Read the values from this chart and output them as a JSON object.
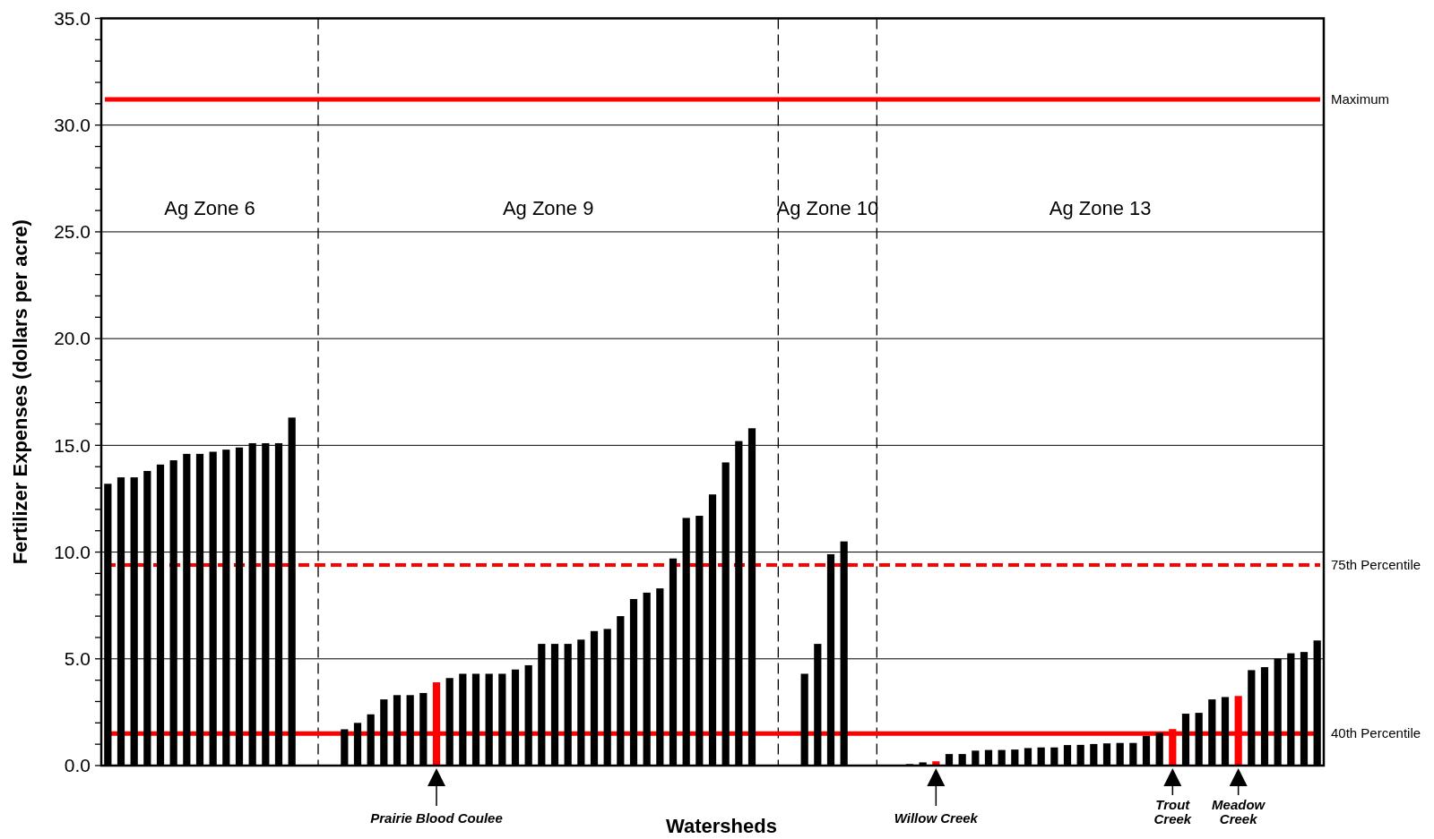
{
  "chart_data": {
    "type": "bar",
    "xlabel": "Watersheds",
    "ylabel": "Fertilizer Expenses (dollars per acre)",
    "categories": [
      null,
      null,
      null,
      null,
      null,
      null,
      null,
      null,
      null,
      null,
      null,
      null,
      null,
      null,
      null,
      null,
      null,
      null,
      null,
      null,
      null,
      null,
      null,
      null,
      null,
      "Prairie Blood Coulee",
      null,
      null,
      null,
      null,
      null,
      null,
      null,
      null,
      null,
      null,
      null,
      null,
      null,
      null,
      null,
      null,
      null,
      null,
      null,
      null,
      null,
      null,
      null,
      null,
      null,
      null,
      null,
      null,
      null,
      null,
      null,
      null,
      null,
      null,
      null,
      null,
      null,
      "Willow Creek",
      null,
      null,
      null,
      null,
      null,
      null,
      null,
      null,
      null,
      null,
      null,
      null,
      null,
      null,
      null,
      null,
      null,
      "Trout Creek",
      null,
      null,
      null,
      null,
      "Meadow Creek",
      null,
      null,
      null,
      null,
      null,
      null
    ],
    "values": [
      13.2,
      13.5,
      13.5,
      13.8,
      14.1,
      14.3,
      14.6,
      14.6,
      14.7,
      14.8,
      14.9,
      15.1,
      15.1,
      15.1,
      16.3,
      null,
      null,
      null,
      1.7,
      2.0,
      2.4,
      3.1,
      3.3,
      3.3,
      3.4,
      3.9,
      4.1,
      4.3,
      4.3,
      4.3,
      4.3,
      4.5,
      4.7,
      5.7,
      5.7,
      5.7,
      5.9,
      6.3,
      6.4,
      7.0,
      7.8,
      8.1,
      8.3,
      9.7,
      11.6,
      11.7,
      12.7,
      14.2,
      15.2,
      15.8,
      null,
      null,
      null,
      4.3,
      5.7,
      9.9,
      10.5,
      null,
      null,
      null,
      null,
      0.07,
      0.15,
      0.2,
      0.54,
      0.54,
      0.7,
      0.73,
      0.73,
      0.75,
      0.82,
      0.85,
      0.85,
      0.96,
      0.97,
      1.01,
      1.04,
      1.06,
      1.06,
      1.39,
      1.53,
      1.71,
      2.43,
      2.47,
      3.1,
      3.21,
      3.26,
      4.47,
      4.61,
      5.01,
      5.26,
      5.32,
      5.86
    ],
    "colors": [
      "#000000",
      "#000000",
      "#000000",
      "#000000",
      "#000000",
      "#000000",
      "#000000",
      "#000000",
      "#000000",
      "#000000",
      "#000000",
      "#000000",
      "#000000",
      "#000000",
      "#000000",
      null,
      null,
      null,
      "#000000",
      "#000000",
      "#000000",
      "#000000",
      "#000000",
      "#000000",
      "#000000",
      "#ff0000",
      "#000000",
      "#000000",
      "#000000",
      "#000000",
      "#000000",
      "#000000",
      "#000000",
      "#000000",
      "#000000",
      "#000000",
      "#000000",
      "#000000",
      "#000000",
      "#000000",
      "#000000",
      "#000000",
      "#000000",
      "#000000",
      "#000000",
      "#000000",
      "#000000",
      "#000000",
      "#000000",
      "#000000",
      null,
      null,
      null,
      "#000000",
      "#000000",
      "#000000",
      "#000000",
      null,
      null,
      null,
      null,
      "#000000",
      "#000000",
      "#ff0000",
      "#000000",
      "#000000",
      "#000000",
      "#000000",
      "#000000",
      "#000000",
      "#000000",
      "#000000",
      "#000000",
      "#000000",
      "#000000",
      "#000000",
      "#000000",
      "#000000",
      "#000000",
      "#000000",
      "#000000",
      "#ff0000",
      "#000000",
      "#000000",
      "#000000",
      "#000000",
      "#ff0000",
      "#000000",
      "#000000",
      "#000000",
      "#000000",
      "#000000",
      "#000000"
    ],
    "ylim": [
      0,
      35
    ],
    "yticks": [
      {
        "value": 0,
        "label": "0.0"
      },
      {
        "value": 1,
        "label": null
      },
      {
        "value": 2,
        "label": null
      },
      {
        "value": 3,
        "label": null
      },
      {
        "value": 4,
        "label": null
      },
      {
        "value": 5,
        "label": "5.0"
      },
      {
        "value": 6,
        "label": null
      },
      {
        "value": 7,
        "label": null
      },
      {
        "value": 8,
        "label": null
      },
      {
        "value": 9,
        "label": null
      },
      {
        "value": 10,
        "label": "10.0"
      },
      {
        "value": 11,
        "label": null
      },
      {
        "value": 12,
        "label": null
      },
      {
        "value": 13,
        "label": null
      },
      {
        "value": 14,
        "label": null
      },
      {
        "value": 15,
        "label": "15.0"
      },
      {
        "value": 16,
        "label": null
      },
      {
        "value": 17,
        "label": null
      },
      {
        "value": 18,
        "label": null
      },
      {
        "value": 19,
        "label": null
      },
      {
        "value": 20,
        "label": "20.0"
      },
      {
        "value": 21,
        "label": null
      },
      {
        "value": 22,
        "label": null
      },
      {
        "value": 23,
        "label": null
      },
      {
        "value": 24,
        "label": null
      },
      {
        "value": 25,
        "label": "25.0"
      },
      {
        "value": 26,
        "label": null
      },
      {
        "value": 27,
        "label": null
      },
      {
        "value": 28,
        "label": null
      },
      {
        "value": 29,
        "label": null
      },
      {
        "value": 30,
        "label": "30.0"
      },
      {
        "value": 31,
        "label": null
      },
      {
        "value": 32,
        "label": null
      },
      {
        "value": 33,
        "label": null
      },
      {
        "value": 34,
        "label": null
      },
      {
        "value": 35,
        "label": "35.0"
      }
    ],
    "grid": "y",
    "ref_lines": [
      {
        "axis": "y",
        "value": 31.2,
        "label": "Maximum",
        "color": "#ff0000",
        "line_style": "solid"
      },
      {
        "axis": "y",
        "value": 9.4,
        "label": "75th Percentile",
        "color": "#ff0000",
        "line_style": "dashed"
      },
      {
        "axis": "y",
        "value": 1.5,
        "label": "40th Percentile",
        "color": "#ff0000",
        "line_style": "solid"
      }
    ],
    "annotations": [
      "Ag Zone 6",
      "Ag Zone 9",
      "Ag Zone 10",
      "Ag Zone 13"
    ]
  }
}
